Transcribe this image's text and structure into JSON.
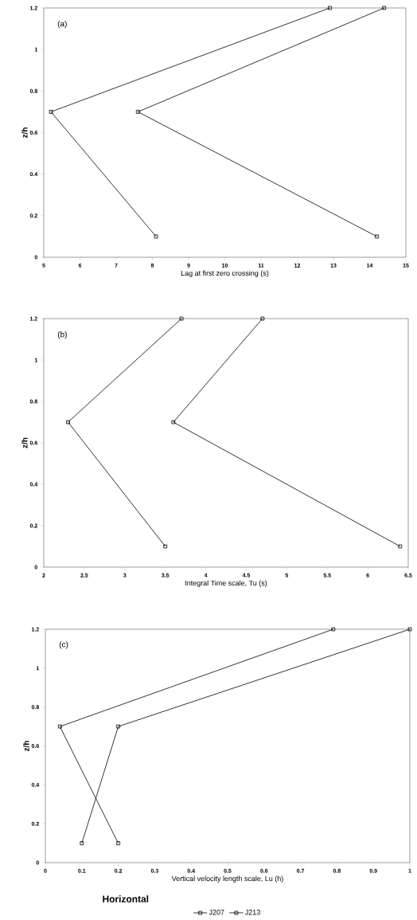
{
  "chart_data": [
    {
      "type": "line",
      "xlabel": "Lag at first zero crossing (s)",
      "ylabel": "z/h",
      "annotations": [
        "(a)"
      ],
      "marker": "square",
      "line_style": "solid",
      "legend": false,
      "xlim": [
        5,
        15
      ],
      "xticks": [
        5,
        6,
        7,
        8,
        9,
        10,
        11,
        12,
        13,
        14,
        15
      ],
      "ylim": [
        0,
        1.2
      ],
      "yticks": [
        0,
        0.2,
        0.4,
        0.6,
        0.8,
        1,
        1.2
      ],
      "series": [
        {
          "color": "#000000",
          "x": [
            14.4,
            7.6,
            14.2
          ],
          "values": [
            1.2,
            0.7,
            0.1
          ]
        },
        {
          "color": "#000000",
          "x": [
            12.9,
            5.2,
            8.1
          ],
          "values": [
            1.2,
            0.7,
            0.1
          ]
        }
      ]
    },
    {
      "type": "line",
      "xlabel": "Integral Time scale,  Tu (s)",
      "ylabel": "z/h",
      "annotations": [
        "(b)"
      ],
      "marker": "square",
      "line_style": "solid",
      "legend": false,
      "xlim": [
        2,
        6.5
      ],
      "xticks": [
        2,
        2.5,
        3,
        3.5,
        4,
        4.5,
        5,
        5.5,
        6,
        6.5
      ],
      "ylim": [
        0,
        1.2
      ],
      "yticks": [
        0,
        0.2,
        0.4,
        0.6,
        0.8,
        1,
        1.2
      ],
      "series": [
        {
          "color": "#000000",
          "x": [
            4.7,
            3.6,
            6.4
          ],
          "values": [
            1.2,
            0.7,
            0.1
          ]
        },
        {
          "color": "#000000",
          "x": [
            3.7,
            2.3,
            3.5
          ],
          "values": [
            1.2,
            0.7,
            0.1
          ]
        }
      ]
    },
    {
      "type": "line",
      "xlabel": "Vertical velocity length scale,  Lu (h)",
      "ylabel": "z/h",
      "annotations": [
        "(c)",
        "Horizontal"
      ],
      "marker": "square",
      "line_style": "solid",
      "legend": "bottom",
      "xlim": [
        0,
        1
      ],
      "xticks": [
        0,
        0.1,
        0.2,
        0.3,
        0.4,
        0.5,
        0.6,
        0.7,
        0.8,
        0.9,
        1
      ],
      "ylim": [
        0,
        1.2
      ],
      "yticks": [
        0,
        0.2,
        0.4,
        0.6,
        0.8,
        1,
        1.2
      ],
      "series": [
        {
          "name": "J207",
          "color": "#000000",
          "x": [
            0.79,
            0.04,
            0.2
          ],
          "values": [
            1.2,
            0.7,
            0.1
          ]
        },
        {
          "name": "J213",
          "color": "#000000",
          "x": [
            1.0,
            0.2,
            0.1
          ],
          "values": [
            1.2,
            0.7,
            0.1
          ]
        }
      ]
    }
  ]
}
